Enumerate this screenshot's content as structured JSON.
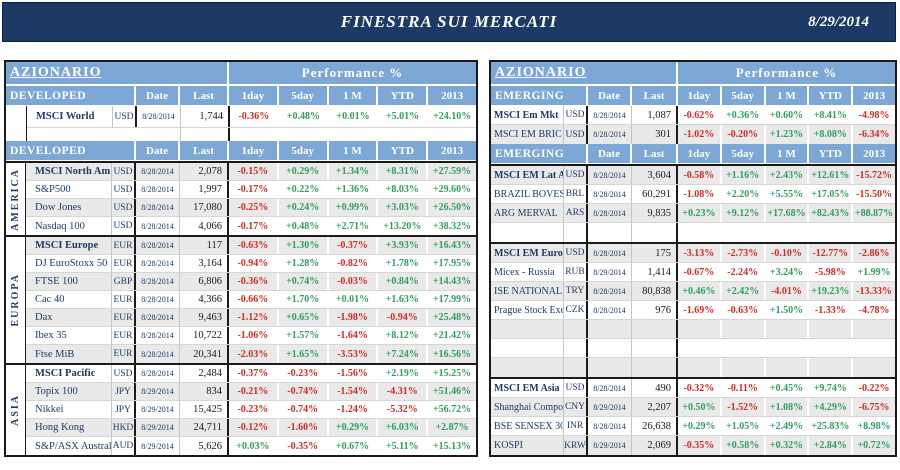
{
  "header": {
    "title": "FINESTRA SUI MERCATI",
    "date": "8/29/2014"
  },
  "colors": {
    "navy": "#1d3a66",
    "header_blue": "#7da7d4",
    "positive": "#2f9e60",
    "negative": "#d42a20",
    "stripe": "#e9e9e9"
  },
  "columns": {
    "date": "Date",
    "last": "Last",
    "perf": [
      "1day",
      "5day",
      "1 M",
      "YTD",
      "2013"
    ]
  },
  "left": {
    "title": "AZIONARIO",
    "perf_label": "Performance  %",
    "group_label": "DEVELOPED",
    "has_spacer": true,
    "block1": [
      {
        "name": "MSCI World",
        "bold": true,
        "ccy": "USD",
        "date": "8/28/2014",
        "last": "1,744",
        "perf": [
          "-0.36%",
          "+0.48%",
          "+0.01%",
          "+5.01%",
          "+24.10%"
        ]
      }
    ],
    "sections": [
      {
        "label": "AMERICA",
        "rows": [
          {
            "name": "MSCI North Am",
            "bold": true,
            "ccy": "USD",
            "date": "8/28/2014",
            "last": "2,078",
            "perf": [
              "-0.15%",
              "+0.29%",
              "+1.34%",
              "+8.31%",
              "+27.59%"
            ]
          },
          {
            "name": "S&P500",
            "ccy": "USD",
            "date": "8/28/2014",
            "last": "1,997",
            "perf": [
              "-0.17%",
              "+0.22%",
              "+1.36%",
              "+8.03%",
              "+29.60%"
            ]
          },
          {
            "name": "Dow Jones",
            "ccy": "USD",
            "date": "8/28/2014",
            "last": "17,080",
            "perf": [
              "-0.25%",
              "+0.24%",
              "+0.99%",
              "+3.03%",
              "+26.50%"
            ]
          },
          {
            "name": "Nasdaq 100",
            "ccy": "USD",
            "date": "8/28/2014",
            "last": "4,066",
            "perf": [
              "-0.17%",
              "+0.48%",
              "+2.71%",
              "+13.20%",
              "+38.32%"
            ]
          }
        ]
      },
      {
        "label": "EUROPA",
        "rows": [
          {
            "name": "MSCI Europe",
            "bold": true,
            "ccy": "EUR",
            "date": "8/28/2014",
            "last": "117",
            "perf": [
              "-0.63%",
              "+1.30%",
              "-0.37%",
              "+3.93%",
              "+16.43%"
            ]
          },
          {
            "name": "DJ EuroStoxx 50",
            "ccy": "EUR",
            "date": "8/28/2014",
            "last": "3,164",
            "perf": [
              "-0.94%",
              "+1.28%",
              "-0.82%",
              "+1.78%",
              "+17.95%"
            ]
          },
          {
            "name": "FTSE 100",
            "ccy": "GBP",
            "date": "8/28/2014",
            "last": "6,806",
            "perf": [
              "-0.36%",
              "+0.74%",
              "-0.03%",
              "+0.84%",
              "+14.43%"
            ]
          },
          {
            "name": "Cac 40",
            "ccy": "EUR",
            "date": "8/28/2014",
            "last": "4,366",
            "perf": [
              "-0.66%",
              "+1.70%",
              "+0.01%",
              "+1.63%",
              "+17.99%"
            ]
          },
          {
            "name": "Dax",
            "ccy": "EUR",
            "date": "8/28/2014",
            "last": "9,463",
            "perf": [
              "-1.12%",
              "+0.65%",
              "-1.98%",
              "-0.94%",
              "+25.48%"
            ]
          },
          {
            "name": "Ibex 35",
            "ccy": "EUR",
            "date": "8/28/2014",
            "last": "10,722",
            "perf": [
              "-1.06%",
              "+1.57%",
              "-1.64%",
              "+8.12%",
              "+21.42%"
            ]
          },
          {
            "name": "Ftse MiB",
            "ccy": "EUR",
            "date": "8/28/2014",
            "last": "20,341",
            "perf": [
              "-2.03%",
              "+1.65%",
              "-3.53%",
              "+7.24%",
              "+16.56%"
            ]
          }
        ]
      },
      {
        "label": "ASIA",
        "rows": [
          {
            "name": "MSCI Pacific",
            "bold": true,
            "ccy": "USD",
            "date": "8/28/2014",
            "last": "2,484",
            "perf": [
              "-0.37%",
              "-0.23%",
              "-1.56%",
              "+2.19%",
              "+15.25%"
            ]
          },
          {
            "name": "Topix 100",
            "ccy": "JPY",
            "date": "8/29/2014",
            "last": "834",
            "perf": [
              "-0.21%",
              "-0.74%",
              "-1.54%",
              "-4.31%",
              "+51.46%"
            ]
          },
          {
            "name": "Nikkei",
            "ccy": "JPY",
            "date": "8/29/2014",
            "last": "15,425",
            "perf": [
              "-0.23%",
              "-0.74%",
              "-1.24%",
              "-5.32%",
              "+56.72%"
            ]
          },
          {
            "name": "Hong Kong",
            "ccy": "HKD",
            "date": "8/29/2014",
            "last": "24,711",
            "perf": [
              "-0.12%",
              "-1.60%",
              "+0.29%",
              "+6.03%",
              "+2.87%"
            ]
          },
          {
            "name": "S&P/ASX Australia",
            "ccy": "AUD",
            "date": "8/29/2014",
            "last": "5,626",
            "perf": [
              "+0.03%",
              "-0.35%",
              "+0.67%",
              "+5.11%",
              "+15.13%"
            ]
          }
        ]
      }
    ]
  },
  "right": {
    "title": "AZIONARIO",
    "perf_label": "Performance  %",
    "group_label": "EMERGING",
    "has_spacer": false,
    "block1": [
      {
        "name": "MSCI Em Mkt",
        "bold": true,
        "ccy": "USD",
        "date": "8/28/2014",
        "last": "1,087",
        "perf": [
          "-0.62%",
          "+0.36%",
          "+0.60%",
          "+8.41%",
          "-4.98%"
        ]
      },
      {
        "name": "MSCI EM BRIC",
        "ccy": "USD",
        "date": "8/28/2014",
        "last": "301",
        "perf": [
          "-1.02%",
          "-0.20%",
          "+1.23%",
          "+8.08%",
          "-6.34%"
        ]
      }
    ],
    "sections": [
      {
        "label": "",
        "rows": [
          {
            "name": "MSCI EM Lat Am",
            "bold": true,
            "ccy": "USD",
            "date": "8/28/2014",
            "last": "3,604",
            "perf": [
              "-0.58%",
              "+1.16%",
              "+2.43%",
              "+12.61%",
              "-15.72%"
            ]
          },
          {
            "name": "BRAZIL BOVESP.",
            "ccy": "BRL",
            "date": "8/28/2014",
            "last": "60,291",
            "perf": [
              "-1.08%",
              "+2.20%",
              "+5.55%",
              "+17.05%",
              "-15.50%"
            ]
          },
          {
            "name": "ARG MERVAL",
            "ccy": "ARS",
            "date": "8/28/2014",
            "last": "9,835",
            "perf": [
              "+0.23%",
              "+9.12%",
              "+17.68%",
              "+82.43%",
              "+88.87%"
            ]
          },
          {
            "empty": true
          }
        ]
      },
      {
        "label": "",
        "rows": [
          {
            "name": "MSCI EM Europe",
            "bold": true,
            "ccy": "USD",
            "date": "8/28/2014",
            "last": "175",
            "perf": [
              "-3.13%",
              "-2.73%",
              "-0.10%",
              "-12.77%",
              "-2.86%"
            ]
          },
          {
            "name": "Micex - Russia",
            "ccy": "RUB",
            "date": "8/29/2014",
            "last": "1,414",
            "perf": [
              "-0.67%",
              "-2.24%",
              "+3.24%",
              "-5.98%",
              "+1.99%"
            ]
          },
          {
            "name": "ISE NATIONAL 1",
            "ccy": "TRY",
            "date": "8/28/2014",
            "last": "80,838",
            "perf": [
              "+0.46%",
              "+2.42%",
              "-4.01%",
              "+19.23%",
              "-13.33%"
            ]
          },
          {
            "name": "Prague Stock Exch.",
            "ccy": "CZK",
            "date": "8/28/2014",
            "last": "976",
            "perf": [
              "-1.69%",
              "-0.63%",
              "+1.50%",
              "-1.33%",
              "-4.78%"
            ]
          },
          {
            "empty": true
          },
          {
            "empty": true
          },
          {
            "empty": true
          }
        ]
      },
      {
        "label": "",
        "rows": [
          {
            "name": "MSCI EM Asia",
            "bold": true,
            "ccy": "USD",
            "date": "8/28/2014",
            "last": "490",
            "perf": [
              "-0.32%",
              "-0.11%",
              "+0.45%",
              "+9.74%",
              "-0.22%"
            ]
          },
          {
            "name": "Shanghai Composite",
            "ccy": "CNY",
            "date": "8/29/2014",
            "last": "2,207",
            "perf": [
              "+0.50%",
              "-1.52%",
              "+1.08%",
              "+4.29%",
              "-6.75%"
            ]
          },
          {
            "name": "BSE SENSEX 30",
            "ccy": "INR",
            "date": "8/28/2014",
            "last": "26,638",
            "perf": [
              "+0.29%",
              "+1.05%",
              "+2.49%",
              "+25.83%",
              "+8.98%"
            ]
          },
          {
            "name": "KOSPI",
            "ccy": "KRW",
            "date": "8/29/2014",
            "last": "2,069",
            "perf": [
              "-0.35%",
              "+0.58%",
              "+0.32%",
              "+2.84%",
              "+0.72%"
            ]
          }
        ]
      }
    ]
  }
}
